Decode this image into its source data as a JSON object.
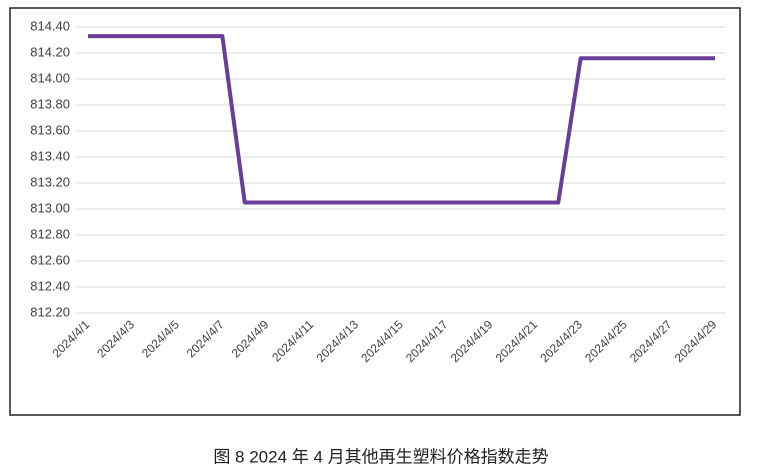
{
  "chart_data": {
    "type": "line",
    "title": "图 8  2024 年 4 月其他再生塑料价格指数走势",
    "categories": [
      "2024/4/1",
      null,
      "2024/4/3",
      null,
      "2024/4/5",
      null,
      "2024/4/7",
      null,
      "2024/4/9",
      null,
      "2024/4/11",
      null,
      "2024/4/13",
      null,
      "2024/4/15",
      null,
      "2024/4/17",
      null,
      "2024/4/19",
      null,
      "2024/4/21",
      null,
      "2024/4/23",
      null,
      "2024/4/25",
      null,
      "2024/4/27",
      null,
      "2024/4/29"
    ],
    "series": [
      {
        "name": "其他再生塑料价格指数",
        "color": "#6a3d9a",
        "values": [
          814.33,
          814.33,
          814.33,
          814.33,
          814.33,
          814.33,
          814.33,
          813.05,
          813.05,
          813.05,
          813.05,
          813.05,
          813.05,
          813.05,
          813.05,
          813.05,
          813.05,
          813.05,
          813.05,
          813.05,
          813.05,
          813.05,
          814.16,
          814.16,
          814.16,
          814.16,
          814.16,
          814.16,
          814.16
        ]
      }
    ],
    "ylim": [
      812.2,
      814.4
    ],
    "yticks": [
      {
        "value": 812.2,
        "label": "812.20"
      },
      {
        "value": 812.4,
        "label": "812.40"
      },
      {
        "value": 812.6,
        "label": "812.60"
      },
      {
        "value": 812.8,
        "label": "812.80"
      },
      {
        "value": 813,
        "label": "813.00"
      },
      {
        "value": 813.2,
        "label": "813.20"
      },
      {
        "value": 813.4,
        "label": "813.40"
      },
      {
        "value": 813.6,
        "label": "813.60"
      },
      {
        "value": 813.8,
        "label": "813.80"
      },
      {
        "value": 814,
        "label": "814.00"
      },
      {
        "value": 814.2,
        "label": "814.20"
      },
      {
        "value": 814.4,
        "label": "814.40"
      }
    ],
    "grid": true
  }
}
